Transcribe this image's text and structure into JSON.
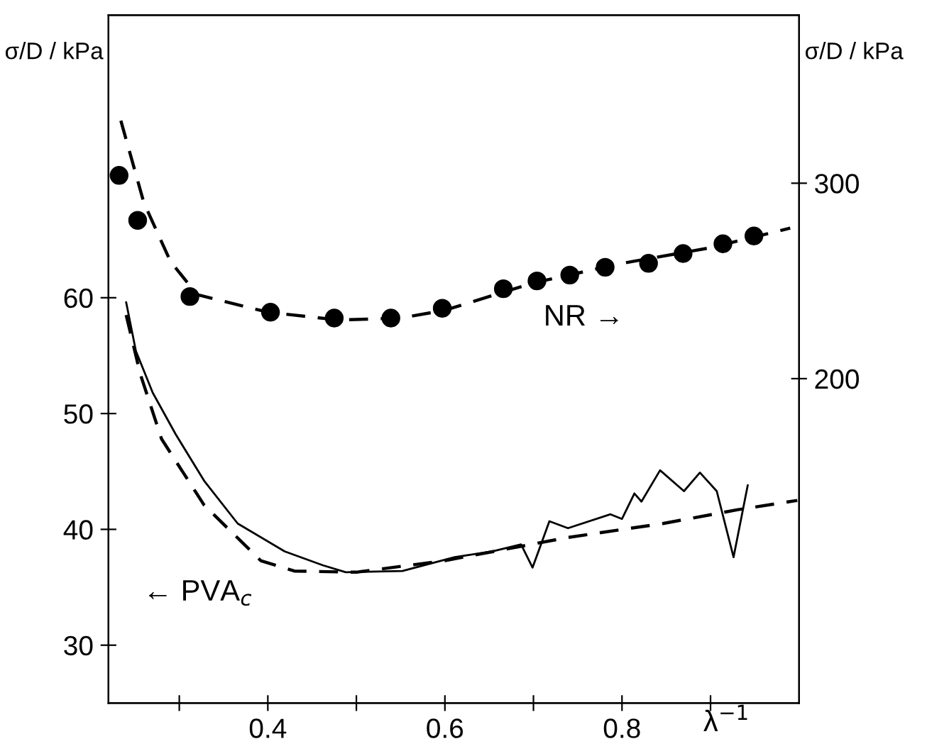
{
  "chart_data": {
    "type": "line",
    "xlabel": "λ$^{−1}$",
    "ylabel": "σ/D / kPa",
    "y2label": "σ/D / kPa",
    "xlim": [
      0.22,
      1.0
    ],
    "xticks": [
      {
        "value": 0.3,
        "label": null
      },
      0.4,
      {
        "value": 0.5,
        "label": null
      },
      0.6,
      {
        "value": 0.7,
        "label": null
      },
      0.8,
      {
        "value": 0.9,
        "label": null
      }
    ],
    "ylim": [
      25,
      84.4
    ],
    "yticks": [
      30,
      40,
      50,
      60
    ],
    "y2lim": [
      34,
      386
    ],
    "y2ticks": [
      200,
      300
    ],
    "grid": false,
    "legend": false,
    "annotations": [
      "NR →",
      "← PVA$_{c}$"
    ],
    "series": [
      {
        "type": "scatter",
        "axis": "y2",
        "color": "#000000",
        "marker": "circle",
        "x": [
          0.232,
          0.253,
          0.312,
          0.403,
          0.475,
          0.539,
          0.597,
          0.666,
          0.704,
          0.741,
          0.781,
          0.83,
          0.869,
          0.914,
          0.949
        ],
        "values": [
          304,
          281,
          242,
          234,
          231,
          231,
          236,
          246,
          250,
          253,
          257,
          259,
          264,
          269,
          273
        ]
      },
      {
        "axis": "y2",
        "color": "#000000",
        "line_style": "dashed",
        "x": [
          0.234,
          0.26,
          0.29,
          0.32,
          0.4,
          0.48,
          0.55,
          0.6,
          0.7,
          0.8,
          0.9,
          0.99
        ],
        "values": [
          332,
          290,
          260,
          243,
          234,
          230,
          231,
          235,
          249,
          259,
          267,
          277
        ]
      },
      {
        "color": "#000000",
        "line_style": "solid",
        "x": [
          0.24,
          0.251,
          0.27,
          0.296,
          0.328,
          0.366,
          0.419,
          0.462,
          0.488,
          0.552,
          0.611,
          0.654,
          0.686,
          0.699,
          0.718,
          0.739,
          0.787,
          0.8,
          0.814,
          0.822,
          0.843,
          0.87,
          0.888,
          0.907,
          0.926,
          0.942
        ],
        "values": [
          59.6,
          55.4,
          51.8,
          48.2,
          44.2,
          40.5,
          38.1,
          36.9,
          36.3,
          36.4,
          37.6,
          38.1,
          38.7,
          36.7,
          40.7,
          40.1,
          41.3,
          40.9,
          43.1,
          42.4,
          45.1,
          43.3,
          44.9,
          43.3,
          37.6,
          43.8
        ]
      },
      {
        "color": "#000000",
        "line_style": "dashed",
        "x": [
          0.24,
          0.256,
          0.28,
          0.328,
          0.392,
          0.43,
          0.5,
          0.6,
          0.739,
          0.846,
          0.931,
          0.998
        ],
        "values": [
          58.5,
          53.4,
          47.8,
          42.1,
          37.3,
          36.4,
          36.3,
          37.3,
          39.3,
          40.5,
          41.7,
          42.5
        ]
      }
    ]
  }
}
